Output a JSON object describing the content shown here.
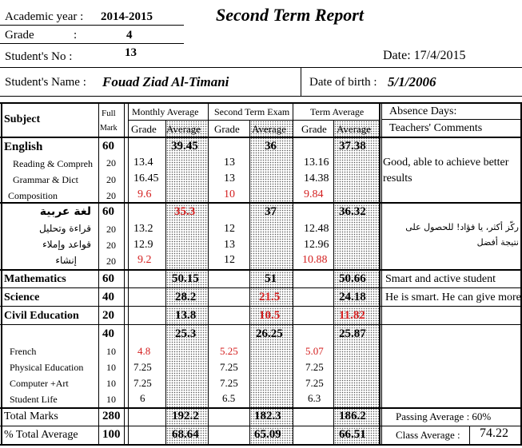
{
  "header": {
    "academic_year_label": "Academic year :",
    "academic_year": "2014-2015",
    "title": "Second Term Report",
    "grade_label": "Grade",
    "grade_colon": ":",
    "grade": "4",
    "student_no_label": "Student's No :",
    "student_no": "13",
    "date": "Date: 17/4/2015",
    "student_name_label": "Student's Name :",
    "student_name": "Fouad Ziad Al-Timani",
    "dob_label": "Date of birth :",
    "dob": "5/1/2006"
  },
  "columns": {
    "subject": "Subject",
    "full": "Full",
    "mark": "Mark",
    "monthly_average": "Monthly Average",
    "exam": "Second Term Exam",
    "term_average": "Term Average",
    "grade": "Grade",
    "average": "Average",
    "absence": "Absence Days:",
    "comments": "Teachers' Comments"
  },
  "rows": {
    "english": {
      "name": "English",
      "full": "60",
      "monthly_avg": "39.45",
      "exam_avg": "36",
      "term_avg": "37.38"
    },
    "reading": {
      "name": "Reading & Compreh",
      "full": "20",
      "monthly": "13.4",
      "exam": "13",
      "term": "13.16"
    },
    "grammar": {
      "name": "Grammar & Dict",
      "full": "20",
      "monthly": "16.45",
      "exam": "13",
      "term": "14.38"
    },
    "composition": {
      "name": "Composition",
      "full": "20",
      "monthly": "9.6",
      "exam": "10",
      "term": "9.84"
    },
    "arabic": {
      "name": "لغة عربية",
      "full": "60",
      "monthly_avg": "35.3",
      "exam_avg": "37",
      "term_avg": "36.32"
    },
    "ar_reading": {
      "name": "قراءة وتحليل",
      "full": "20",
      "monthly": "13.2",
      "exam": "12",
      "term": "12.48"
    },
    "ar_grammar": {
      "name": "قواعد وإملاء",
      "full": "20",
      "monthly": "12.9",
      "exam": "13",
      "term": "12.96"
    },
    "ar_writing": {
      "name": "إنشاء",
      "full": "20",
      "monthly": "9.2",
      "exam": "12",
      "term": "10.88"
    },
    "math": {
      "name": "Mathematics",
      "full": "60",
      "monthly_avg": "50.15",
      "exam_avg": "51",
      "term_avg": "50.66"
    },
    "science": {
      "name": "Science",
      "full": "40",
      "monthly_avg": "28.2",
      "exam_avg": "21.5",
      "term_avg": "24.18"
    },
    "civil": {
      "name": "Civil Education",
      "full": "20",
      "monthly_avg": "13.8",
      "exam_avg": "10.5",
      "term_avg": "11.82"
    },
    "group": {
      "full": "40",
      "monthly_avg": "25.3",
      "exam_avg": "26.25",
      "term_avg": "25.87"
    },
    "french": {
      "name": "French",
      "full": "10",
      "monthly": "4.8",
      "exam": "5.25",
      "term": "5.07"
    },
    "pe": {
      "name": "Physical Education",
      "full": "10",
      "monthly": "7.25",
      "exam": "7.25",
      "term": "7.25"
    },
    "computer": {
      "name": "Computer +Art",
      "full": "10",
      "monthly": "7.25",
      "exam": "7.25",
      "term": "7.25"
    },
    "student_life": {
      "name": "Student Life",
      "full": "10",
      "monthly": "6",
      "exam": "6.5",
      "term": "6.3"
    },
    "total": {
      "name": "Total Marks",
      "full": "280",
      "monthly_avg": "192.2",
      "exam_avg": "182.3",
      "term_avg": "186.2"
    },
    "percent": {
      "name": "% Total Average",
      "full": "100",
      "monthly_avg": "68.64",
      "exam_avg": "65.09",
      "term_avg": "66.51"
    }
  },
  "comments": {
    "english_1": "Good, able to achieve better",
    "english_2": "results",
    "arabic_1": "ركّز أكثر، يا فؤاد! للحصول على",
    "arabic_2": "نتيجة أفضل",
    "math": "Smart and active student",
    "science": "He is smart. He can give more"
  },
  "footer": {
    "passing_average": "Passing Average : 60%",
    "class_average_label": "Class Average :",
    "class_average": "74.22"
  },
  "colors": {
    "fail_red": "#d41f1f"
  }
}
